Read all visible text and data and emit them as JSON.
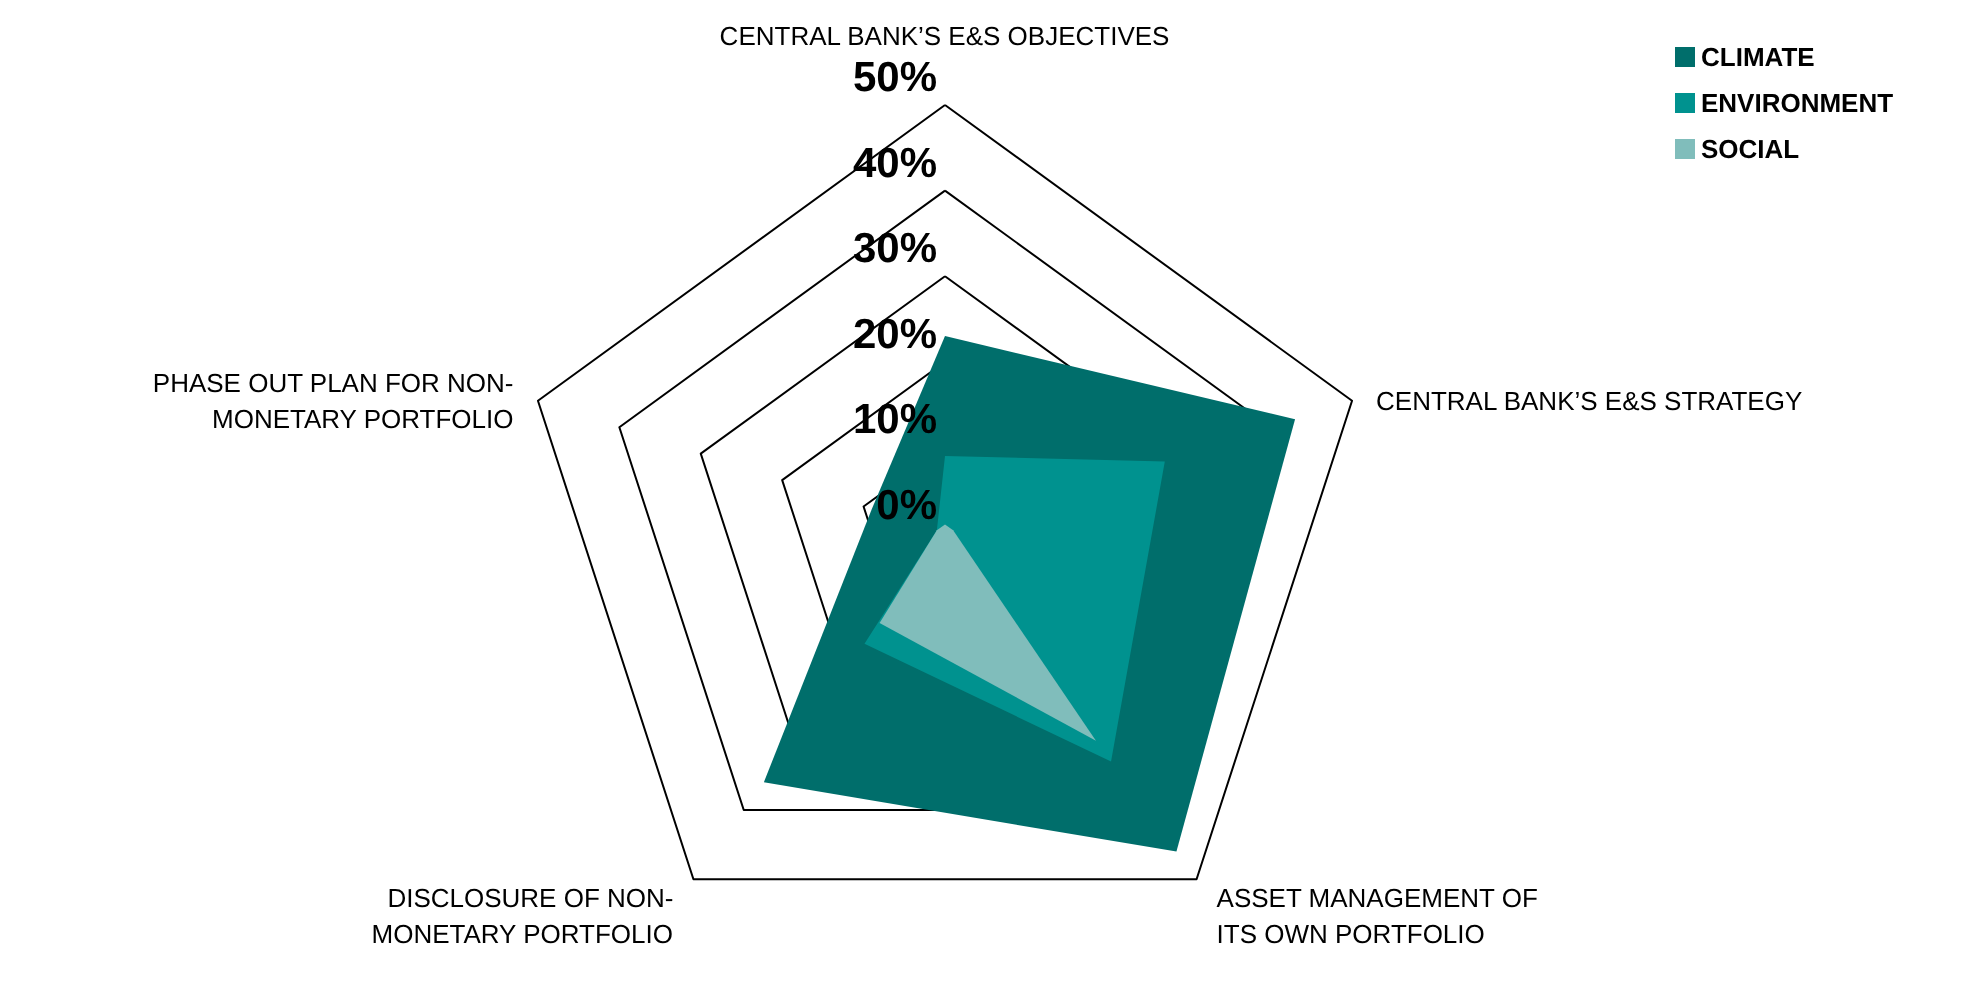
{
  "chart_data": {
    "type": "radar",
    "categories": [
      "CENTRAL BANK’S E&S OBJECTIVES",
      "CENTRAL BANK’S E&S STRATEGY",
      "ASSET MANAGEMENT OF ITS OWN PORTFOLIO",
      "DISCLOSURE OF NON-MONETARY PORTFOLIO",
      "PHASE OUT PLAN FOR NON-MONETARY PORTFOLIO"
    ],
    "series": [
      {
        "name": "CLIMATE",
        "color": "#006e6b",
        "values": [
          23,
          43,
          46,
          36,
          9
        ]
      },
      {
        "name": "ENVIRONMENT",
        "color": "#00928f",
        "values": [
          9,
          27,
          33,
          16,
          1
        ]
      },
      {
        "name": "SOCIAL",
        "color": "#80bdbb",
        "values": [
          1,
          1,
          30,
          13,
          1
        ]
      }
    ],
    "ylim": [
      0,
      50
    ],
    "yticks": [
      {
        "value": 0,
        "label": "0%"
      },
      {
        "value": 10,
        "label": "10%"
      },
      {
        "value": 20,
        "label": "20%"
      },
      {
        "value": 30,
        "label": "30%"
      },
      {
        "value": 40,
        "label": "40%"
      },
      {
        "value": 50,
        "label": "50%"
      }
    ],
    "grid": true,
    "legend": "top right"
  }
}
